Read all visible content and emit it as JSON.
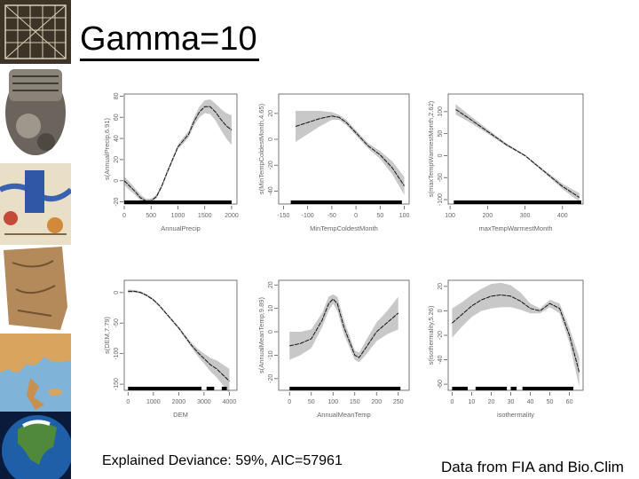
{
  "title": "Gamma=10",
  "footer_left": "Explained Deviance: 59%, AIC=57961",
  "footer_right": "Data from FIA and Bio.Clim",
  "image_strip": [
    {
      "name": "grid-map-image"
    },
    {
      "name": "clay-tablet-image"
    },
    {
      "name": "medieval-map-image"
    },
    {
      "name": "stone-map-image"
    },
    {
      "name": "greece-map-image"
    },
    {
      "name": "north-america-globe-image"
    }
  ],
  "chart_data": [
    {
      "type": "line",
      "id": "annual-precip",
      "xlabel": "AnnualPrecip",
      "ylabel": "s(AnnualPrecip,6.91)",
      "xlim": [
        0,
        2100
      ],
      "ylim": [
        -22,
        82
      ],
      "xticks": [
        0,
        500,
        1000,
        1500,
        2000
      ],
      "yticks": [
        -20,
        0,
        20,
        40,
        60,
        80
      ],
      "x": [
        0,
        100,
        200,
        300,
        400,
        500,
        600,
        700,
        800,
        900,
        1000,
        1100,
        1200,
        1300,
        1400,
        1500,
        1600,
        1700,
        1800,
        1900,
        2000
      ],
      "y": [
        0,
        -5,
        -10,
        -16,
        -19,
        -19,
        -15,
        -5,
        8,
        20,
        32,
        38,
        44,
        56,
        65,
        70,
        70,
        65,
        58,
        52,
        48
      ],
      "band": [
        4,
        4,
        3,
        3,
        2,
        2,
        2,
        2,
        2,
        2,
        2,
        3,
        3,
        4,
        5,
        6,
        7,
        8,
        10,
        12,
        14
      ],
      "rug": [
        [
          0,
          2000
        ]
      ]
    },
    {
      "type": "line",
      "id": "min-temp-coldest-month",
      "xlabel": "MinTempColdestMonth",
      "ylabel": "s(MinTempColdestMonth,4.65)",
      "xlim": [
        -160,
        110
      ],
      "ylim": [
        -50,
        35
      ],
      "xticks": [
        -150,
        -100,
        -50,
        0,
        50,
        100
      ],
      "yticks": [
        -40,
        -20,
        0,
        20
      ],
      "x": [
        -125,
        -100,
        -75,
        -50,
        -35,
        -20,
        0,
        25,
        50,
        75,
        100
      ],
      "y": [
        10,
        13,
        16,
        18,
        17,
        13,
        5,
        -5,
        -12,
        -22,
        -36
      ],
      "band": [
        12,
        9,
        6,
        3,
        2,
        2,
        2,
        2,
        3,
        5,
        7
      ],
      "rug": [
        [
          -135,
          95
        ]
      ]
    },
    {
      "type": "line",
      "id": "max-temp-warmest-month",
      "xlabel": "maxTempWarmestMonth",
      "ylabel": "s(maxTempWarmestMonth,2.62)",
      "xlim": [
        95,
        455
      ],
      "ylim": [
        -110,
        140
      ],
      "xticks": [
        100,
        200,
        300,
        400
      ],
      "yticks": [
        -100,
        -50,
        0,
        50,
        100
      ],
      "x": [
        115,
        150,
        200,
        250,
        300,
        350,
        400,
        445
      ],
      "y": [
        105,
        85,
        55,
        25,
        0,
        -35,
        -70,
        -95
      ],
      "band": [
        12,
        8,
        5,
        3,
        2,
        3,
        6,
        10
      ],
      "rug": [
        [
          110,
          450
        ]
      ]
    },
    {
      "type": "line",
      "id": "dem",
      "xlabel": "DEM",
      "ylabel": "s(DEM,7.79)",
      "xlim": [
        -150,
        4300
      ],
      "ylim": [
        -160,
        20
      ],
      "xticks": [
        0,
        1000,
        2000,
        3000,
        4000
      ],
      "yticks": [
        -150,
        -100,
        -50,
        0
      ],
      "x": [
        0,
        250,
        500,
        750,
        1000,
        1250,
        1500,
        1750,
        2000,
        2250,
        2500,
        2750,
        3000,
        3250,
        3500,
        3750,
        4000
      ],
      "y": [
        2,
        2,
        0,
        -5,
        -12,
        -22,
        -34,
        -46,
        -58,
        -72,
        -86,
        -98,
        -108,
        -118,
        -125,
        -135,
        -145
      ],
      "band": [
        3,
        2,
        2,
        2,
        2,
        2,
        2,
        2,
        2,
        3,
        4,
        6,
        8,
        11,
        14,
        17,
        20
      ],
      "rug": [
        [
          0,
          2900
        ],
        [
          3100,
          3400
        ],
        [
          3700,
          3900
        ]
      ]
    },
    {
      "type": "line",
      "id": "annual-mean-temp",
      "xlabel": "AnnualMeanTemp",
      "ylabel": "s(AnnualMeanTemp,9.89)",
      "xlim": [
        -25,
        275
      ],
      "ylim": [
        -25,
        22
      ],
      "xticks": [
        0,
        50,
        100,
        150,
        200,
        250
      ],
      "yticks": [
        -20,
        -10,
        0,
        10,
        20
      ],
      "x": [
        0,
        25,
        50,
        75,
        90,
        100,
        110,
        125,
        150,
        160,
        175,
        200,
        225,
        250
      ],
      "y": [
        -6,
        -5,
        -3,
        5,
        12,
        14,
        12,
        2,
        -10,
        -11,
        -7,
        0,
        4,
        8
      ],
      "band": [
        6,
        5,
        4,
        3,
        3,
        2,
        3,
        3,
        2,
        2,
        3,
        4,
        5,
        7
      ],
      "rug": [
        [
          0,
          255
        ]
      ]
    },
    {
      "type": "line",
      "id": "isothermality",
      "xlabel": "isothermality",
      "ylabel": "s(isothermality,5.26)",
      "xlim": [
        -2,
        67
      ],
      "ylim": [
        -65,
        25
      ],
      "xticks": [
        0,
        10,
        20,
        30,
        40,
        50,
        60
      ],
      "yticks": [
        -60,
        -40,
        -20,
        0,
        20
      ],
      "x": [
        0,
        5,
        10,
        15,
        20,
        25,
        30,
        35,
        40,
        45,
        50,
        55,
        60,
        65
      ],
      "y": [
        -10,
        -3,
        4,
        9,
        12,
        13,
        12,
        8,
        2,
        0,
        6,
        2,
        -20,
        -50
      ],
      "band": [
        12,
        10,
        9,
        9,
        10,
        10,
        9,
        7,
        4,
        2,
        3,
        4,
        6,
        12
      ],
      "rug": [
        [
          0,
          8
        ],
        [
          12,
          28
        ],
        [
          30,
          33
        ],
        [
          36,
          62
        ]
      ]
    }
  ]
}
